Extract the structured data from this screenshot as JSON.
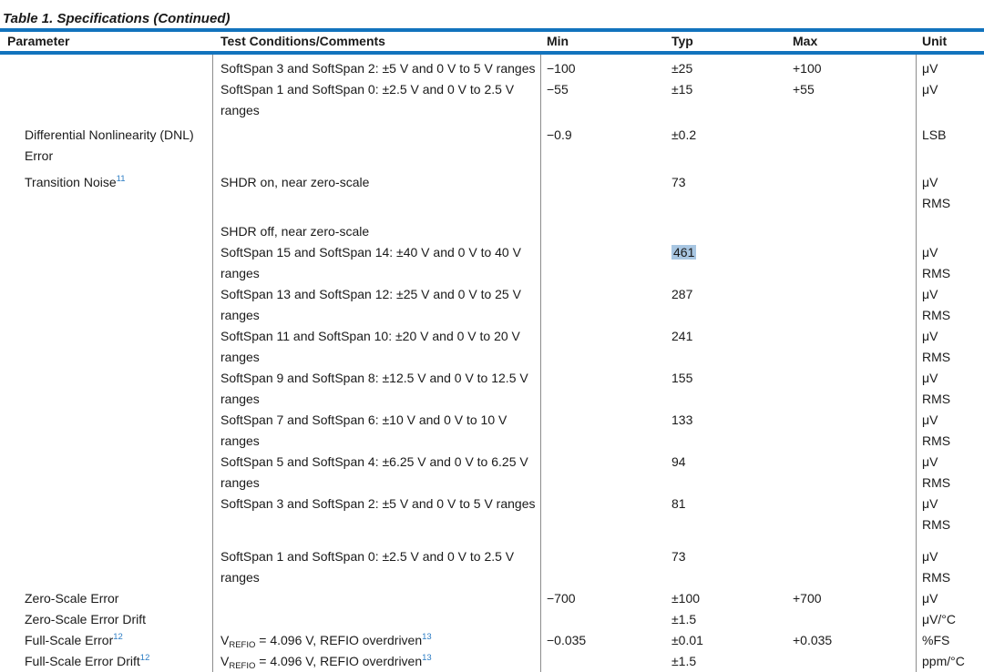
{
  "title": "Table 1. Specifications (Continued)",
  "colors": {
    "accent": "#1273bd",
    "link": "#2b7cc4",
    "highlight": "#a8c6e2",
    "divider": "#8c8c8c",
    "text": "#1a1a1a"
  },
  "columns": [
    {
      "key": "parameter",
      "label": "Parameter"
    },
    {
      "key": "conditions",
      "label": "Test Conditions/Comments"
    },
    {
      "key": "min",
      "label": "Min"
    },
    {
      "key": "typ",
      "label": "Typ"
    },
    {
      "key": "max",
      "label": "Max"
    },
    {
      "key": "unit",
      "label": "Unit"
    }
  ],
  "rows": [
    {
      "parameter": "",
      "conditions": "SoftSpan 3 and SoftSpan 2: ±5 V and 0 V to 5 V ranges",
      "min": "−100",
      "typ": "±25",
      "max": "+100",
      "unit": "μV"
    },
    {
      "parameter": "",
      "conditions": "SoftSpan 1 and SoftSpan 0: ±2.5 V and 0 V to 2.5 V\nranges",
      "min": "−55",
      "typ": "±15",
      "max": "+55",
      "unit": "μV"
    },
    {
      "gap": "xs",
      "parameter": "Differential Nonlinearity (DNL)\nError",
      "conditions": "",
      "min": "−0.9",
      "typ": "±0.2",
      "max": "",
      "unit": "LSB"
    },
    {
      "gap": "sm",
      "parameter": {
        "segs": [
          {
            "t": "Transition Noise"
          },
          {
            "t": "11",
            "sup": true,
            "link": true
          }
        ]
      },
      "conditions": "SHDR on, near zero-scale",
      "min": "",
      "typ": "73",
      "max": "",
      "unit": "μV\nRMS"
    },
    {
      "gap": "md",
      "parameter": "",
      "conditions": "SHDR off, near zero-scale",
      "min": "",
      "typ": "",
      "max": "",
      "unit": ""
    },
    {
      "parameter": "",
      "conditions": "SoftSpan 15 and SoftSpan 14: ±40 V and 0 V to 40 V\nranges",
      "min": "",
      "typ": {
        "segs": [
          {
            "t": "461",
            "highlight": true
          }
        ]
      },
      "max": "",
      "unit": "μV\nRMS"
    },
    {
      "parameter": "",
      "conditions": "SoftSpan 13 and SoftSpan 12: ±25 V and 0 V to 25 V\nranges",
      "min": "",
      "typ": "287",
      "max": "",
      "unit": "μV\nRMS"
    },
    {
      "parameter": "",
      "conditions": "SoftSpan 11 and SoftSpan 10: ±20 V and 0 V to 20 V\nranges",
      "min": "",
      "typ": "241",
      "max": "",
      "unit": "μV\nRMS"
    },
    {
      "parameter": "",
      "conditions": "SoftSpan 9 and SoftSpan 8: ±12.5 V and 0 V to 12.5 V\nranges",
      "min": "",
      "typ": "155",
      "max": "",
      "unit": "μV\nRMS"
    },
    {
      "parameter": "",
      "conditions": "SoftSpan 7 and SoftSpan 6: ±10 V and 0 V to 10 V\nranges",
      "min": "",
      "typ": "133",
      "max": "",
      "unit": "μV\nRMS"
    },
    {
      "parameter": "",
      "conditions": "SoftSpan 5 and SoftSpan 4: ±6.25 V and 0 V to 6.25 V\nranges",
      "min": "",
      "typ": "94",
      "max": "",
      "unit": "μV\nRMS"
    },
    {
      "parameter": "",
      "conditions": "SoftSpan 3 and SoftSpan 2: ±5 V and 0 V to 5 V ranges",
      "min": "",
      "typ": "81",
      "max": "",
      "unit": "μV\nRMS"
    },
    {
      "gap": "lg",
      "parameter": "",
      "conditions": "SoftSpan 1 and SoftSpan 0: ±2.5 V and 0 V to 2.5 V\nranges",
      "min": "",
      "typ": "73",
      "max": "",
      "unit": "μV\nRMS"
    },
    {
      "parameter": "Zero-Scale Error",
      "conditions": "",
      "min": "−700",
      "typ": "±100",
      "max": "+700",
      "unit": "μV"
    },
    {
      "parameter": "Zero-Scale Error Drift",
      "conditions": "",
      "min": "",
      "typ": "±1.5",
      "max": "",
      "unit": "μV/°C"
    },
    {
      "parameter": {
        "segs": [
          {
            "t": "Full-Scale Error"
          },
          {
            "t": "12",
            "sup": true,
            "link": true
          }
        ]
      },
      "conditions": {
        "segs": [
          {
            "t": "V"
          },
          {
            "t": "REFIO",
            "sub": true
          },
          {
            "t": " = 4.096 V, REFIO overdriven"
          },
          {
            "t": "13",
            "sup": true,
            "link": true
          }
        ]
      },
      "min": "−0.035",
      "typ": "±0.01",
      "max": "+0.035",
      "unit": "%FS"
    },
    {
      "parameter": {
        "segs": [
          {
            "t": "Full-Scale Error Drift"
          },
          {
            "t": "12",
            "sup": true,
            "link": true
          }
        ]
      },
      "conditions": {
        "segs": [
          {
            "t": "V"
          },
          {
            "t": "REFIO",
            "sub": true
          },
          {
            "t": " = 4.096 V, REFIO overdriven"
          },
          {
            "t": "13",
            "sup": true,
            "link": true
          }
        ]
      },
      "min": "",
      "typ": "±1.5",
      "max": "",
      "unit": "ppm/°C"
    }
  ]
}
